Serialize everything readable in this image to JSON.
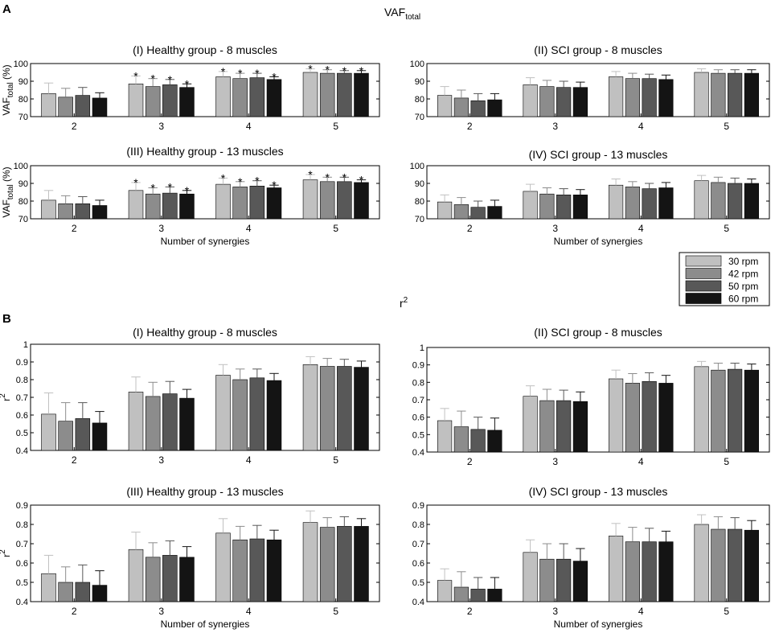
{
  "figure": {
    "panel_a_label": "A",
    "panel_b_label": "B",
    "section_a_title": {
      "main": "VAF",
      "sub": "total"
    },
    "section_b_title": {
      "main": "r",
      "sup": "2"
    },
    "legend": [
      {
        "label": "30 rpm",
        "color": "#c0c0c0"
      },
      {
        "label": "42 rpm",
        "color": "#8c8c8c"
      },
      {
        "label": "50 rpm",
        "color": "#585858"
      },
      {
        "label": "60 rpm",
        "color": "#141414"
      }
    ]
  },
  "chart_data": [
    {
      "type": "bar",
      "section": "A",
      "title": "(I) Healthy group - 8 muscles",
      "ylabel": {
        "main": "VAF",
        "sub": "total",
        "suffix": " (%)"
      },
      "xlabel": "",
      "ylim": [
        70,
        100
      ],
      "yticks": [
        70,
        80,
        90,
        100
      ],
      "ytick_labels": [
        "70",
        "80",
        "90",
        "100"
      ],
      "categories": [
        "2",
        "3",
        "4",
        "5"
      ],
      "series": [
        {
          "name": "30 rpm",
          "values": [
            83,
            88.5,
            92.5,
            95
          ],
          "errors": [
            6,
            4.5,
            3,
            2
          ]
        },
        {
          "name": "42 rpm",
          "values": [
            81,
            87,
            91.5,
            94.5
          ],
          "errors": [
            5,
            4.5,
            3,
            2
          ]
        },
        {
          "name": "50 rpm",
          "values": [
            82,
            88,
            92,
            94.5
          ],
          "errors": [
            4.5,
            3,
            2.5,
            1.5
          ]
        },
        {
          "name": "60 rpm",
          "values": [
            80.5,
            86.5,
            91,
            94.5
          ],
          "errors": [
            3,
            2,
            1.5,
            1.5
          ]
        }
      ],
      "significance_marker": "*",
      "significant": [
        [
          false,
          true,
          true,
          true
        ],
        [
          false,
          true,
          true,
          true
        ],
        [
          false,
          true,
          true,
          true
        ],
        [
          false,
          true,
          true,
          true
        ]
      ]
    },
    {
      "type": "bar",
      "section": "A",
      "title": "(II) SCI group - 8 muscles",
      "ylabel": null,
      "xlabel": "",
      "ylim": [
        70,
        100
      ],
      "yticks": [
        70,
        80,
        90,
        100
      ],
      "ytick_labels": [
        "70",
        "80",
        "90",
        "100"
      ],
      "categories": [
        "2",
        "3",
        "4",
        "5"
      ],
      "series": [
        {
          "name": "30 rpm",
          "values": [
            82,
            88,
            92.5,
            95
          ],
          "errors": [
            5,
            4,
            3,
            2
          ]
        },
        {
          "name": "42 rpm",
          "values": [
            80.5,
            87,
            91.5,
            94.5
          ],
          "errors": [
            4.5,
            3.5,
            3,
            2
          ]
        },
        {
          "name": "50 rpm",
          "values": [
            79,
            86.5,
            91.5,
            94.5
          ],
          "errors": [
            4,
            3.5,
            2.5,
            2
          ]
        },
        {
          "name": "60 rpm",
          "values": [
            79.5,
            86.5,
            91,
            94.5
          ],
          "errors": [
            3.5,
            3,
            2.5,
            2
          ]
        }
      ],
      "significance_marker": "*",
      "significant": [
        [
          false,
          false,
          false,
          false
        ],
        [
          false,
          false,
          false,
          false
        ],
        [
          false,
          false,
          false,
          false
        ],
        [
          false,
          false,
          false,
          false
        ]
      ]
    },
    {
      "type": "bar",
      "section": "A",
      "title": "(III) Healthy group - 13 muscles",
      "ylabel": {
        "main": "VAF",
        "sub": "total",
        "suffix": " (%)"
      },
      "xlabel": "Number of synergies",
      "ylim": [
        70,
        100
      ],
      "yticks": [
        70,
        80,
        90,
        100
      ],
      "ytick_labels": [
        "70",
        "80",
        "90",
        "100"
      ],
      "categories": [
        "2",
        "3",
        "4",
        "5"
      ],
      "series": [
        {
          "name": "30 rpm",
          "values": [
            80.5,
            86,
            89.5,
            92
          ],
          "errors": [
            5.5,
            4.5,
            3.5,
            3
          ]
        },
        {
          "name": "42 rpm",
          "values": [
            78.5,
            84,
            88,
            91
          ],
          "errors": [
            4.5,
            3.5,
            3,
            2.5
          ]
        },
        {
          "name": "50 rpm",
          "values": [
            78.5,
            84.5,
            88.5,
            91
          ],
          "errors": [
            4,
            3.5,
            3,
            2.5
          ]
        },
        {
          "name": "60 rpm",
          "values": [
            77.5,
            84,
            87.5,
            90.5
          ],
          "errors": [
            3,
            2,
            1.5,
            1.5
          ]
        }
      ],
      "significance_marker": "*",
      "significant": [
        [
          false,
          true,
          true,
          true
        ],
        [
          false,
          true,
          true,
          true
        ],
        [
          false,
          true,
          true,
          true
        ],
        [
          false,
          true,
          true,
          true
        ]
      ]
    },
    {
      "type": "bar",
      "section": "A",
      "title": "(IV) SCI group - 13 muscles",
      "ylabel": null,
      "xlabel": "Number of synergies",
      "ylim": [
        70,
        100
      ],
      "yticks": [
        70,
        80,
        90,
        100
      ],
      "ytick_labels": [
        "70",
        "80",
        "90",
        "100"
      ],
      "categories": [
        "2",
        "3",
        "4",
        "5"
      ],
      "series": [
        {
          "name": "30 rpm",
          "values": [
            79.5,
            85.5,
            89,
            91.5
          ],
          "errors": [
            4,
            4,
            3.5,
            3
          ]
        },
        {
          "name": "42 rpm",
          "values": [
            78,
            84,
            88,
            90.5
          ],
          "errors": [
            4,
            3.5,
            3,
            3
          ]
        },
        {
          "name": "50 rpm",
          "values": [
            76.5,
            83.5,
            87,
            90
          ],
          "errors": [
            3.5,
            3.5,
            3,
            3
          ]
        },
        {
          "name": "60 rpm",
          "values": [
            77,
            83.5,
            87.5,
            90
          ],
          "errors": [
            3.5,
            3,
            3,
            2.5
          ]
        }
      ],
      "significance_marker": "*",
      "significant": [
        [
          false,
          false,
          false,
          false
        ],
        [
          false,
          false,
          false,
          false
        ],
        [
          false,
          false,
          false,
          false
        ],
        [
          false,
          false,
          false,
          false
        ]
      ]
    },
    {
      "type": "bar",
      "section": "B",
      "title": "(I) Healthy group - 8 muscles",
      "ylabel": {
        "main": "r",
        "sup": "2"
      },
      "xlabel": "",
      "ylim": [
        0.4,
        1.0
      ],
      "yticks": [
        0.4,
        0.5,
        0.6,
        0.7,
        0.8,
        0.9,
        1.0
      ],
      "ytick_labels": [
        "0.4",
        "0.5",
        "0.6",
        "0.7",
        "0.8",
        "0.9",
        "1"
      ],
      "categories": [
        "2",
        "3",
        "4",
        "5"
      ],
      "series": [
        {
          "name": "30 rpm",
          "values": [
            0.605,
            0.73,
            0.825,
            0.885
          ],
          "errors": [
            0.12,
            0.085,
            0.06,
            0.045
          ]
        },
        {
          "name": "42 rpm",
          "values": [
            0.565,
            0.705,
            0.8,
            0.875
          ],
          "errors": [
            0.105,
            0.08,
            0.06,
            0.045
          ]
        },
        {
          "name": "50 rpm",
          "values": [
            0.58,
            0.72,
            0.81,
            0.875
          ],
          "errors": [
            0.09,
            0.07,
            0.05,
            0.04
          ]
        },
        {
          "name": "60 rpm",
          "values": [
            0.555,
            0.695,
            0.795,
            0.87
          ],
          "errors": [
            0.065,
            0.05,
            0.04,
            0.035
          ]
        }
      ],
      "significance_marker": "*",
      "significant": [
        [
          false,
          false,
          false,
          false
        ],
        [
          false,
          false,
          false,
          false
        ],
        [
          false,
          false,
          false,
          false
        ],
        [
          false,
          false,
          false,
          false
        ]
      ]
    },
    {
      "type": "bar",
      "section": "B",
      "title": "(II) SCI group - 8 muscles",
      "ylabel": null,
      "xlabel": "",
      "ylim": [
        0.4,
        1.0
      ],
      "yticks": [
        0.4,
        0.5,
        0.6,
        0.7,
        0.8,
        0.9,
        1.0
      ],
      "ytick_labels": [
        "0.4",
        "0.5",
        "0.6",
        "0.7",
        "0.8",
        "0.9",
        "1"
      ],
      "categories": [
        "2",
        "3",
        "4",
        "5"
      ],
      "series": [
        {
          "name": "30 rpm",
          "values": [
            0.58,
            0.72,
            0.82,
            0.89
          ],
          "errors": [
            0.07,
            0.06,
            0.05,
            0.03
          ]
        },
        {
          "name": "42 rpm",
          "values": [
            0.545,
            0.695,
            0.795,
            0.87
          ],
          "errors": [
            0.09,
            0.065,
            0.055,
            0.04
          ]
        },
        {
          "name": "50 rpm",
          "values": [
            0.53,
            0.695,
            0.805,
            0.875
          ],
          "errors": [
            0.07,
            0.06,
            0.05,
            0.035
          ]
        },
        {
          "name": "60 rpm",
          "values": [
            0.525,
            0.69,
            0.795,
            0.87
          ],
          "errors": [
            0.07,
            0.055,
            0.045,
            0.035
          ]
        }
      ],
      "significance_marker": "*",
      "significant": [
        [
          false,
          false,
          false,
          false
        ],
        [
          false,
          false,
          false,
          false
        ],
        [
          false,
          false,
          false,
          false
        ],
        [
          false,
          false,
          false,
          false
        ]
      ]
    },
    {
      "type": "bar",
      "section": "B",
      "title": "(III) Healthy group - 13 muscles",
      "ylabel": {
        "main": "r",
        "sup": "2"
      },
      "xlabel": "Number of synergies",
      "ylim": [
        0.4,
        0.9
      ],
      "yticks": [
        0.4,
        0.5,
        0.6,
        0.7,
        0.8,
        0.9
      ],
      "ytick_labels": [
        "0.4",
        "0.5",
        "0.6",
        "0.7",
        "0.8",
        "0.9"
      ],
      "categories": [
        "2",
        "3",
        "4",
        "5"
      ],
      "series": [
        {
          "name": "30 rpm",
          "values": [
            0.545,
            0.67,
            0.755,
            0.81
          ],
          "errors": [
            0.095,
            0.09,
            0.075,
            0.06
          ]
        },
        {
          "name": "42 rpm",
          "values": [
            0.5,
            0.63,
            0.72,
            0.785
          ],
          "errors": [
            0.08,
            0.075,
            0.07,
            0.05
          ]
        },
        {
          "name": "50 rpm",
          "values": [
            0.5,
            0.64,
            0.725,
            0.79
          ],
          "errors": [
            0.09,
            0.075,
            0.07,
            0.05
          ]
        },
        {
          "name": "60 rpm",
          "values": [
            0.485,
            0.63,
            0.72,
            0.79
          ],
          "errors": [
            0.075,
            0.055,
            0.05,
            0.04
          ]
        }
      ],
      "significance_marker": "*",
      "significant": [
        [
          false,
          false,
          false,
          false
        ],
        [
          false,
          false,
          false,
          false
        ],
        [
          false,
          false,
          false,
          false
        ],
        [
          false,
          false,
          false,
          false
        ]
      ]
    },
    {
      "type": "bar",
      "section": "B",
      "title": "(IV) SCI group - 13 muscles",
      "ylabel": null,
      "xlabel": "Number of synergies",
      "ylim": [
        0.4,
        0.9
      ],
      "yticks": [
        0.4,
        0.5,
        0.6,
        0.7,
        0.8,
        0.9
      ],
      "ytick_labels": [
        "0.4",
        "0.5",
        "0.6",
        "0.7",
        "0.8",
        "0.9"
      ],
      "categories": [
        "2",
        "3",
        "4",
        "5"
      ],
      "series": [
        {
          "name": "30 rpm",
          "values": [
            0.51,
            0.655,
            0.74,
            0.8
          ],
          "errors": [
            0.06,
            0.065,
            0.065,
            0.05
          ]
        },
        {
          "name": "42 rpm",
          "values": [
            0.475,
            0.62,
            0.71,
            0.775
          ],
          "errors": [
            0.08,
            0.08,
            0.075,
            0.065
          ]
        },
        {
          "name": "50 rpm",
          "values": [
            0.465,
            0.62,
            0.71,
            0.775
          ],
          "errors": [
            0.06,
            0.08,
            0.07,
            0.06
          ]
        },
        {
          "name": "60 rpm",
          "values": [
            0.465,
            0.61,
            0.71,
            0.77
          ],
          "errors": [
            0.06,
            0.065,
            0.055,
            0.05
          ]
        }
      ],
      "significance_marker": "*",
      "significant": [
        [
          false,
          false,
          false,
          false
        ],
        [
          false,
          false,
          false,
          false
        ],
        [
          false,
          false,
          false,
          false
        ],
        [
          false,
          false,
          false,
          false
        ]
      ]
    }
  ]
}
